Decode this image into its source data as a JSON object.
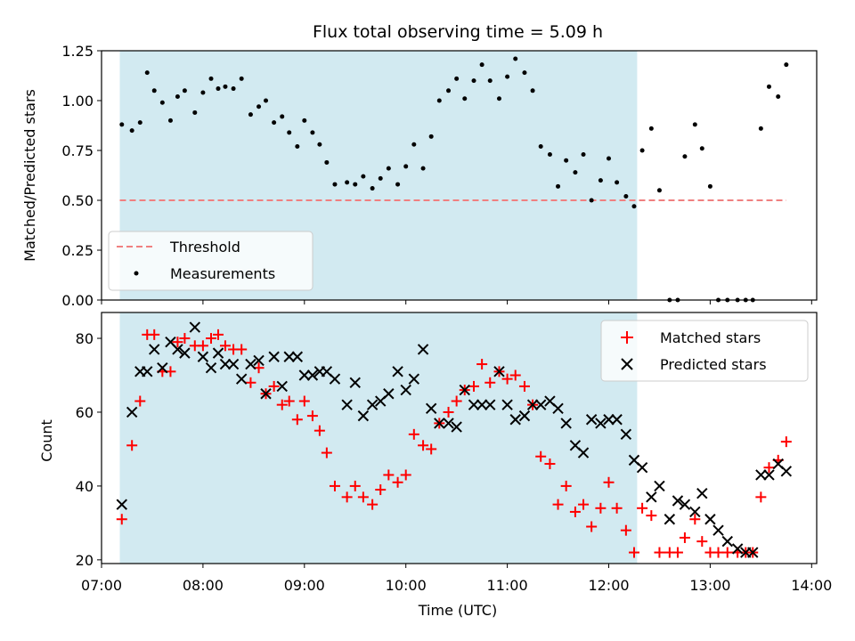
{
  "chart_data": [
    {
      "type": "scatter",
      "panel": "top",
      "title": "Flux total observing time = 5.09 h",
      "xlabel": "",
      "ylabel": "Matched/Predicted stars",
      "xlim": [
        7.0,
        14.05
      ],
      "ylim": [
        0.0,
        1.25
      ],
      "yticks": [
        "0.00",
        "0.25",
        "0.50",
        "0.75",
        "1.00",
        "1.25"
      ],
      "yticks_values": [
        0.0,
        0.25,
        0.5,
        0.75,
        1.0,
        1.25
      ],
      "shaded_interval": [
        7.18,
        12.28
      ],
      "shade_color": "#add8e6",
      "threshold": {
        "label": "Threshold",
        "value": 0.5,
        "x_range": [
          7.18,
          13.75
        ],
        "color": "#f08080"
      },
      "legend": {
        "position": "lower-left",
        "entries": [
          "Threshold",
          "Measurements"
        ]
      },
      "series": [
        {
          "name": "Measurements",
          "color": "#000000",
          "x": [
            7.2,
            7.3,
            7.38,
            7.45,
            7.52,
            7.6,
            7.68,
            7.75,
            7.82,
            7.92,
            8.0,
            8.08,
            8.15,
            8.22,
            8.3,
            8.38,
            8.47,
            8.55,
            8.62,
            8.7,
            8.78,
            8.85,
            8.93,
            9.0,
            9.08,
            9.15,
            9.22,
            9.3,
            9.42,
            9.5,
            9.58,
            9.67,
            9.75,
            9.83,
            9.92,
            10.0,
            10.08,
            10.17,
            10.25,
            10.33,
            10.42,
            10.5,
            10.58,
            10.67,
            10.75,
            10.83,
            10.92,
            11.0,
            11.08,
            11.17,
            11.25,
            11.33,
            11.42,
            11.5,
            11.58,
            11.67,
            11.75,
            11.83,
            11.92,
            12.0,
            12.08,
            12.17,
            12.25,
            12.33,
            12.42,
            12.5,
            12.6,
            12.68,
            12.75,
            12.85,
            12.92,
            13.0,
            13.08,
            13.17,
            13.27,
            13.35,
            13.42,
            13.5,
            13.58,
            13.67,
            13.75
          ],
          "y": [
            0.88,
            0.85,
            0.89,
            1.14,
            1.05,
            0.99,
            0.9,
            1.02,
            1.05,
            0.94,
            1.04,
            1.11,
            1.06,
            1.07,
            1.06,
            1.11,
            0.93,
            0.97,
            1.0,
            0.89,
            0.92,
            0.84,
            0.77,
            0.9,
            0.84,
            0.78,
            0.69,
            0.58,
            0.59,
            0.58,
            0.62,
            0.56,
            0.61,
            0.66,
            0.58,
            0.67,
            0.78,
            0.66,
            0.82,
            1.0,
            1.05,
            1.11,
            1.01,
            1.1,
            1.18,
            1.1,
            1.01,
            1.12,
            1.21,
            1.14,
            1.05,
            0.77,
            0.73,
            0.57,
            0.7,
            0.64,
            0.73,
            0.5,
            0.6,
            0.71,
            0.59,
            0.52,
            0.47,
            0.75,
            0.86,
            0.55,
            0.0,
            0.0,
            0.72,
            0.88,
            0.76,
            0.57,
            0.0,
            0.0,
            0.0,
            0.0,
            0.0,
            0.86,
            1.07,
            1.02,
            1.18
          ]
        }
      ]
    },
    {
      "type": "scatter",
      "panel": "bottom",
      "xlabel": "Time (UTC)",
      "ylabel": "Count",
      "xlim": [
        7.0,
        14.05
      ],
      "ylim": [
        19.0,
        87.0
      ],
      "yticks": [
        "20",
        "40",
        "60",
        "80"
      ],
      "yticks_values": [
        20,
        40,
        60,
        80
      ],
      "xticks": [
        "07:00",
        "08:00",
        "09:00",
        "10:00",
        "11:00",
        "12:00",
        "13:00",
        "14:00"
      ],
      "xticks_values": [
        7,
        8,
        9,
        10,
        11,
        12,
        13,
        14
      ],
      "shaded_interval": [
        7.18,
        12.28
      ],
      "legend": {
        "position": "top-right",
        "entries": [
          "Matched stars",
          "Predicted stars"
        ]
      },
      "series": [
        {
          "name": "Matched stars",
          "marker": "+",
          "color": "#ff0000",
          "x": [
            7.2,
            7.3,
            7.38,
            7.45,
            7.52,
            7.6,
            7.68,
            7.75,
            7.82,
            7.92,
            8.0,
            8.08,
            8.15,
            8.22,
            8.3,
            8.38,
            8.47,
            8.55,
            8.62,
            8.7,
            8.78,
            8.85,
            8.93,
            9.0,
            9.08,
            9.15,
            9.22,
            9.3,
            9.42,
            9.5,
            9.58,
            9.67,
            9.75,
            9.83,
            9.92,
            10.0,
            10.08,
            10.17,
            10.25,
            10.33,
            10.42,
            10.5,
            10.58,
            10.67,
            10.75,
            10.83,
            10.92,
            11.0,
            11.08,
            11.17,
            11.25,
            11.33,
            11.42,
            11.5,
            11.58,
            11.67,
            11.75,
            11.83,
            11.92,
            12.0,
            12.08,
            12.17,
            12.25,
            12.33,
            12.42,
            12.5,
            12.6,
            12.68,
            12.75,
            12.85,
            12.92,
            13.0,
            13.08,
            13.17,
            13.27,
            13.35,
            13.42,
            13.5,
            13.58,
            13.67,
            13.75
          ],
          "y": [
            31,
            51,
            63,
            81,
            81,
            71,
            71,
            79,
            80,
            78,
            78,
            80,
            81,
            78,
            77,
            77,
            68,
            72,
            65,
            67,
            62,
            63,
            58,
            63,
            59,
            55,
            49,
            40,
            37,
            40,
            37,
            35,
            39,
            43,
            41,
            43,
            54,
            51,
            50,
            57,
            60,
            63,
            66,
            67,
            73,
            68,
            71,
            69,
            70,
            67,
            62,
            48,
            46,
            35,
            40,
            33,
            35,
            29,
            34,
            41,
            34,
            28,
            22,
            34,
            32,
            22,
            22,
            22,
            26,
            31,
            25,
            22,
            22,
            22,
            22,
            22,
            22,
            37,
            45,
            47,
            52
          ]
        },
        {
          "name": "Predicted stars",
          "marker": "x",
          "color": "#000000",
          "x": [
            7.2,
            7.3,
            7.38,
            7.45,
            7.52,
            7.6,
            7.68,
            7.75,
            7.82,
            7.92,
            8.0,
            8.08,
            8.15,
            8.22,
            8.3,
            8.38,
            8.47,
            8.55,
            8.62,
            8.7,
            8.78,
            8.85,
            8.93,
            9.0,
            9.08,
            9.15,
            9.22,
            9.3,
            9.42,
            9.5,
            9.58,
            9.67,
            9.75,
            9.83,
            9.92,
            10.0,
            10.08,
            10.17,
            10.25,
            10.33,
            10.42,
            10.5,
            10.58,
            10.67,
            10.75,
            10.83,
            10.92,
            11.0,
            11.08,
            11.17,
            11.25,
            11.33,
            11.42,
            11.5,
            11.58,
            11.67,
            11.75,
            11.83,
            11.92,
            12.0,
            12.08,
            12.17,
            12.25,
            12.33,
            12.42,
            12.5,
            12.6,
            12.68,
            12.75,
            12.85,
            12.92,
            13.0,
            13.08,
            13.17,
            13.27,
            13.35,
            13.42,
            13.5,
            13.58,
            13.67,
            13.75
          ],
          "y": [
            35,
            60,
            71,
            71,
            77,
            72,
            79,
            77,
            76,
            83,
            75,
            72,
            76,
            73,
            73,
            69,
            73,
            74,
            65,
            75,
            67,
            75,
            75,
            70,
            70,
            71,
            71,
            69,
            62,
            68,
            59,
            62,
            63,
            65,
            71,
            66,
            69,
            77,
            61,
            57,
            57,
            56,
            66,
            62,
            62,
            62,
            71,
            62,
            58,
            59,
            62,
            62,
            63,
            61,
            57,
            51,
            49,
            58,
            57,
            58,
            58,
            54,
            47,
            45,
            37,
            40,
            31,
            36,
            35,
            33,
            38,
            31,
            28,
            25,
            23,
            22,
            22,
            43,
            43,
            46,
            44
          ]
        }
      ]
    }
  ]
}
